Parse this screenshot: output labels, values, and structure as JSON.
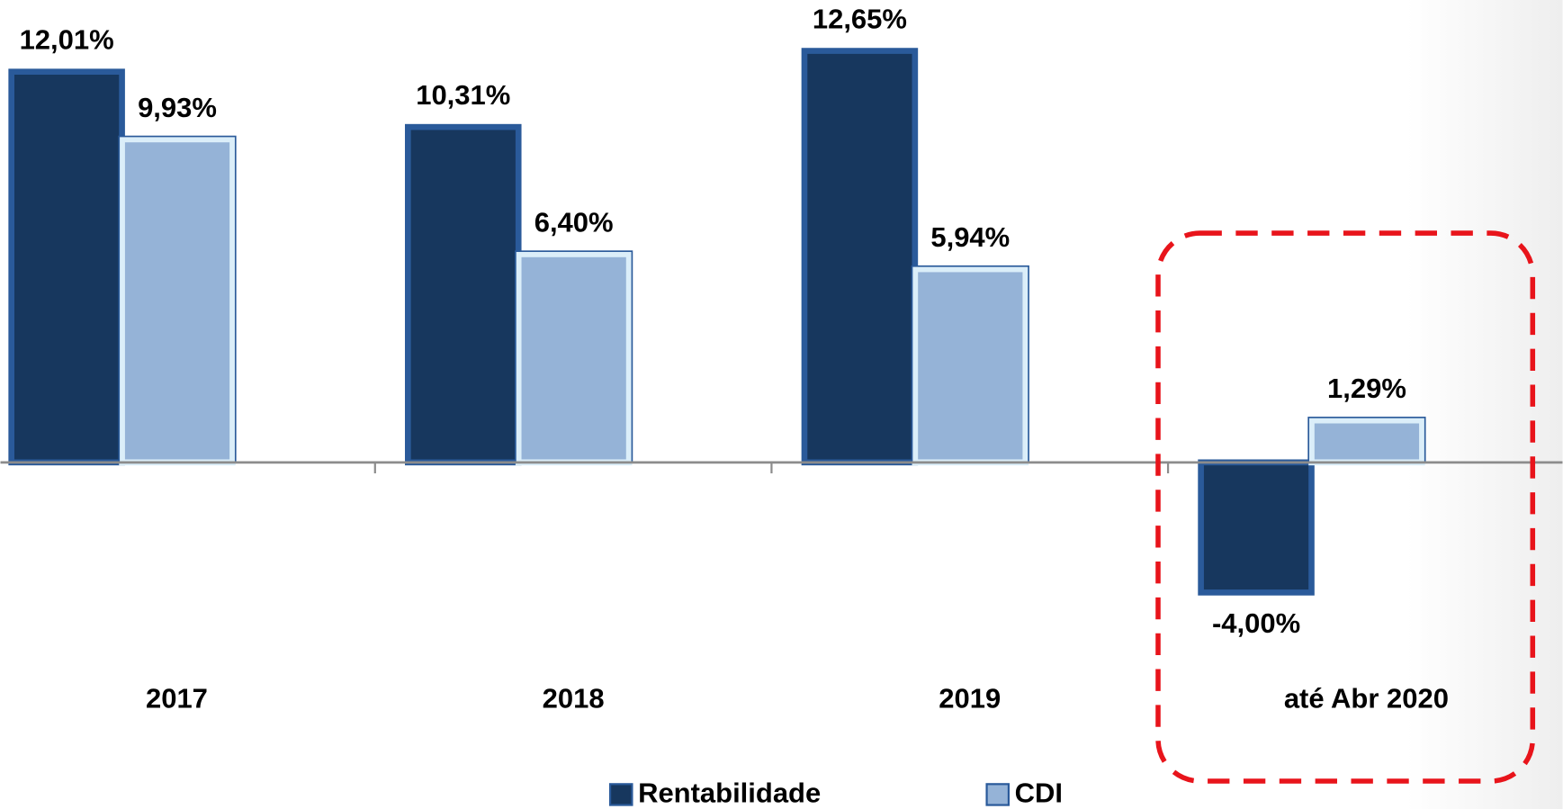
{
  "chart_data": {
    "type": "bar",
    "categories": [
      "2017",
      "2018",
      "2019",
      "até Abr 2020"
    ],
    "series": [
      {
        "name": "Rentabilidade",
        "color": "#17375e",
        "values": [
          12.01,
          10.31,
          12.65,
          -4.0
        ],
        "value_labels": [
          "12,01%",
          "10,31%",
          "12,65%",
          "-4,00%"
        ]
      },
      {
        "name": "CDI",
        "color": "#95b3d7",
        "values": [
          9.93,
          6.4,
          5.94,
          1.29
        ],
        "value_labels": [
          "9,93%",
          "6,40%",
          "5,94%",
          "1,29%"
        ]
      }
    ],
    "ylim": [
      -6,
      14
    ]
  }
}
